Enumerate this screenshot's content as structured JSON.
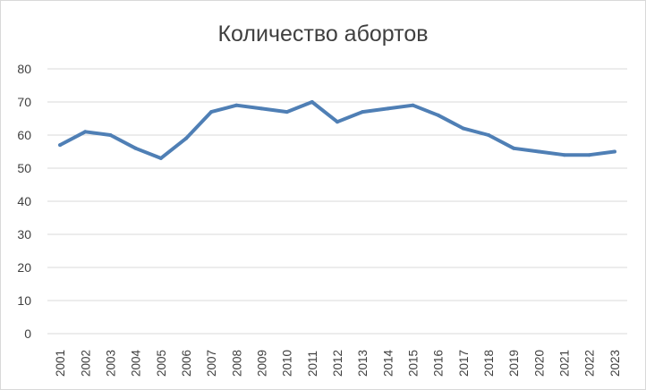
{
  "chart_data": {
    "type": "line",
    "title": "Количество абортов",
    "xlabel": "",
    "ylabel": "",
    "ylim": [
      0,
      80
    ],
    "yticks": [
      0,
      10,
      20,
      30,
      40,
      50,
      60,
      70,
      80
    ],
    "grid": true,
    "legend": "none",
    "categories": [
      "2001",
      "2002",
      "2003",
      "2004",
      "2005",
      "2006",
      "2007",
      "2008",
      "2009",
      "2010",
      "2011",
      "2012",
      "2013",
      "2014",
      "2015",
      "2016",
      "2017",
      "2018",
      "2019",
      "2020",
      "2021",
      "2022",
      "2023"
    ],
    "series": [
      {
        "color": "#4f7fb5",
        "values": [
          57,
          61,
          60,
          56,
          53,
          59,
          67,
          69,
          68,
          67,
          70,
          64,
          67,
          68,
          69,
          66,
          62,
          60,
          56,
          55,
          54,
          54,
          55
        ]
      }
    ]
  }
}
